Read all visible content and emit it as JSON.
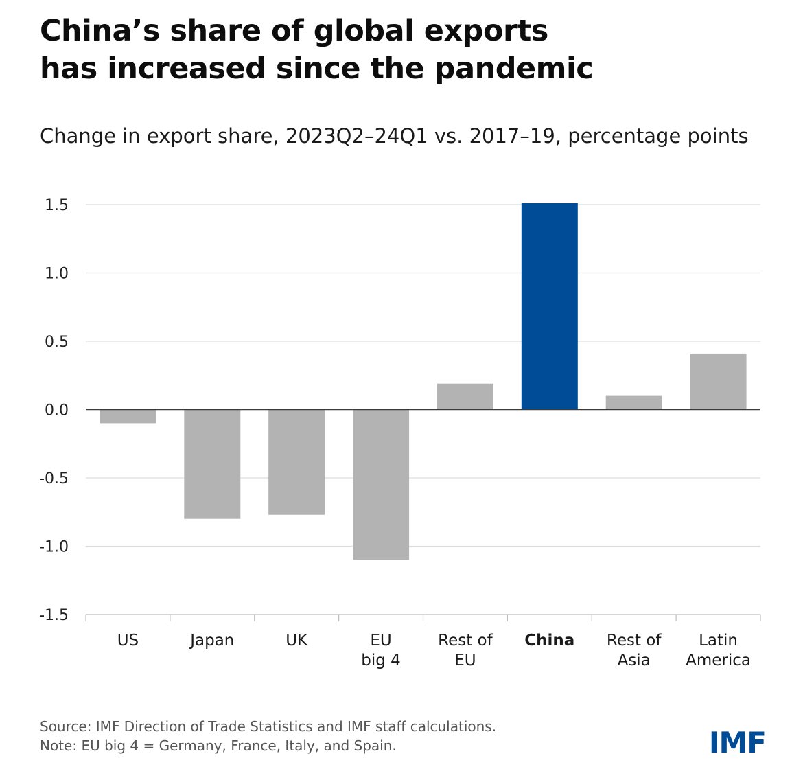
{
  "chart_data": {
    "type": "bar",
    "title": "China’s share of global exports has increased since the pandemic",
    "title_lines": [
      "China’s share of global exports",
      "has increased since the pandemic"
    ],
    "subtitle": "Change in export share, 2023Q2–24Q1 vs. 2017–19, percentage points",
    "categories": [
      "US",
      "Japan",
      "UK",
      "EU big 4",
      "Rest of EU",
      "China",
      "Rest of Asia",
      "Latin America"
    ],
    "category_lines": [
      [
        "US"
      ],
      [
        "Japan"
      ],
      [
        "UK"
      ],
      [
        "EU",
        "big 4"
      ],
      [
        "Rest of",
        "EU"
      ],
      [
        "China"
      ],
      [
        "Rest of",
        "Asia"
      ],
      [
        "Latin",
        "America"
      ]
    ],
    "values": [
      -0.1,
      -0.8,
      -0.77,
      -1.1,
      0.19,
      1.51,
      0.1,
      0.41
    ],
    "highlight": "China",
    "ylim": [
      -1.5,
      1.5
    ],
    "yticks": [
      1.5,
      1.0,
      0.5,
      0.0,
      -0.5,
      -1.0,
      -1.5
    ],
    "ytick_labels": [
      "1.5",
      "1.0",
      "0.5",
      "0.0",
      "-0.5",
      "-1.0",
      "-1.5"
    ],
    "xlabel": "",
    "ylabel": "",
    "grid": true,
    "colors": {
      "bar": "#b3b3b3",
      "highlight_bar": "#004c97",
      "grid": "#dedede",
      "zero_line": "#3a3a3a",
      "axis": "#bdbdbd"
    }
  },
  "source": "Source: IMF Direction of Trade Statistics and IMF staff calculations.",
  "note": "Note: EU big 4 = Germany, France, Italy, and Spain.",
  "logo": "IMF"
}
